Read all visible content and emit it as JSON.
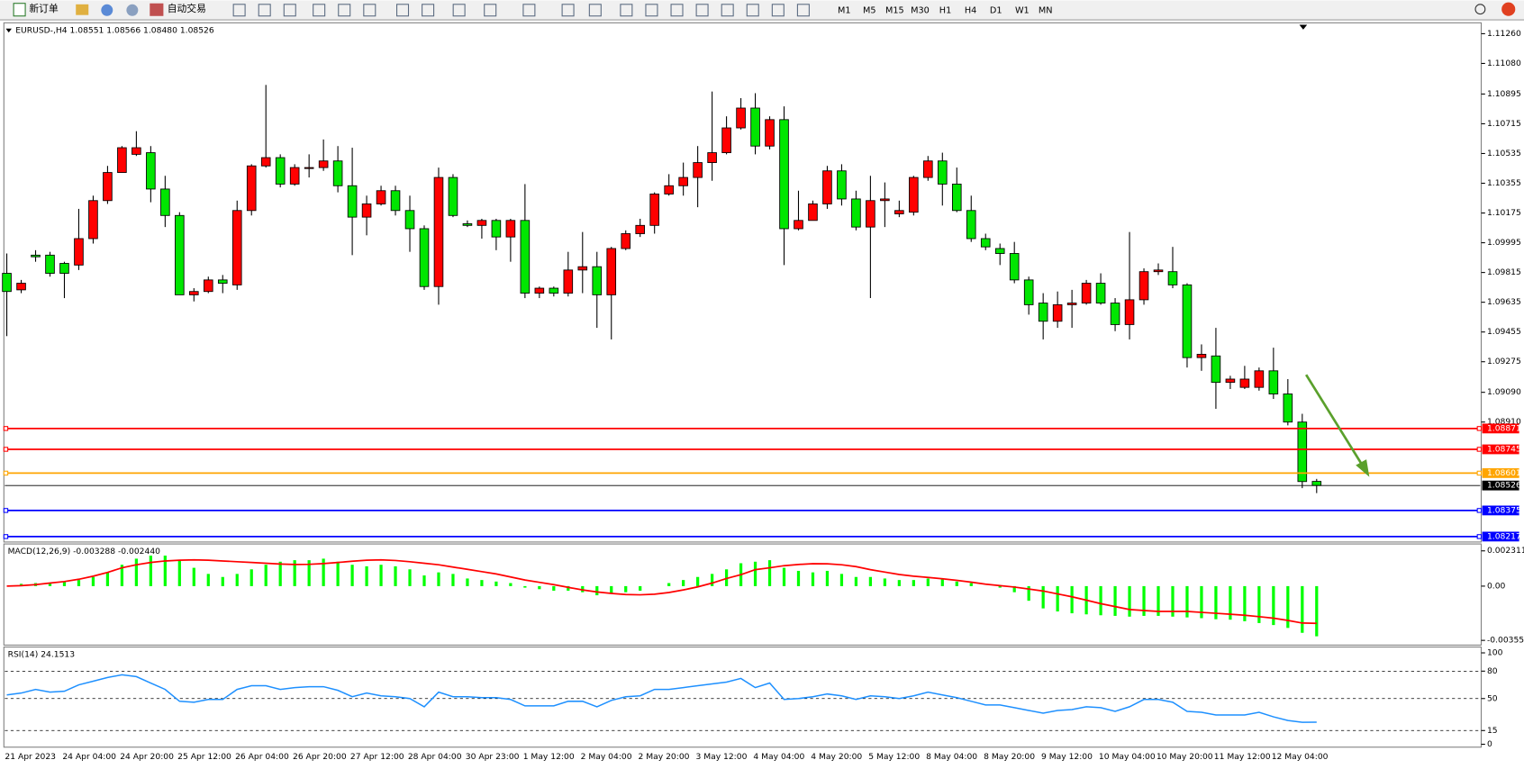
{
  "toolbar": {
    "new_order": "新订单",
    "auto_trading": "自动交易",
    "timeframes": [
      "M1",
      "M5",
      "M15",
      "M30",
      "H1",
      "H4",
      "D1",
      "W1",
      "MN"
    ]
  },
  "chart_data": [
    {
      "type": "candlestick",
      "title": "EURUSD-,H4  1.08551 1.08566 1.08480 1.08526",
      "categories": [
        "21 Apr 2023",
        null,
        null,
        null,
        "24 Apr 04:00",
        null,
        null,
        null,
        "24 Apr 20:00",
        null,
        null,
        null,
        "25 Apr 12:00",
        null,
        null,
        null,
        "26 Apr 04:00",
        null,
        null,
        null,
        "26 Apr 20:00",
        null,
        null,
        null,
        "27 Apr 12:00",
        null,
        null,
        null,
        "28 Apr 04:00",
        null,
        null,
        null,
        "30 Apr 23:00",
        null,
        null,
        null,
        "1 May 12:00",
        null,
        null,
        null,
        "2 May 04:00",
        null,
        null,
        null,
        "2 May 20:00",
        null,
        null,
        null,
        "3 May 12:00",
        null,
        null,
        null,
        "4 May 04:00",
        null,
        null,
        null,
        "4 May 20:00",
        null,
        null,
        null,
        "5 May 12:00",
        null,
        null,
        null,
        "8 May 04:00",
        null,
        null,
        null,
        "8 May 20:00",
        null,
        null,
        null,
        "9 May 12:00",
        null,
        null,
        null,
        "10 May 04:00",
        null,
        null,
        null,
        "10 May 20:00",
        null,
        null,
        null,
        "11 May 12:00",
        null,
        null,
        null,
        "12 May 04:00",
        null,
        null,
        null
      ],
      "open": [
        1.0981,
        1.0971,
        1.0992,
        1.0992,
        1.0987,
        1.0986,
        1.1002,
        1.1025,
        1.1042,
        1.1053,
        1.1054,
        1.1032,
        1.1016,
        1.0968,
        1.097,
        1.0977,
        1.0974,
        1.1019,
        1.1046,
        1.1051,
        1.1035,
        1.1045,
        1.1045,
        1.1049,
        1.1034,
        1.1015,
        1.1023,
        1.1031,
        1.1019,
        1.1008,
        1.0973,
        1.1039,
        1.1011,
        1.101,
        1.1013,
        1.1003,
        1.1013,
        1.0969,
        1.0972,
        1.0969,
        1.0983,
        1.0985,
        1.0968,
        1.0996,
        1.1005,
        1.101,
        1.1029,
        1.1034,
        1.1039,
        1.1048,
        1.1054,
        1.1069,
        1.1081,
        1.1058,
        1.1074,
        1.1008,
        1.1013,
        1.1023,
        1.1043,
        1.1026,
        1.1009,
        1.1025,
        1.1017,
        1.1018,
        1.1039,
        1.1049,
        1.1035,
        1.1019,
        1.1002,
        1.0996,
        1.0993,
        1.0977,
        1.0963,
        1.0952,
        1.0962,
        1.0963,
        1.0975,
        1.0963,
        1.095,
        1.0965,
        1.0982,
        1.0982,
        1.0974,
        1.093,
        1.0931,
        1.0915,
        1.0912,
        1.0912,
        1.0922,
        1.0908,
        1.0891,
        1.08551
      ],
      "high": [
        1.0993,
        1.0977,
        1.0995,
        1.0994,
        1.0988,
        1.102,
        1.1028,
        1.1046,
        1.1058,
        1.1067,
        1.1058,
        1.104,
        1.1018,
        1.0972,
        1.0979,
        1.098,
        1.1025,
        1.1047,
        1.1095,
        1.1053,
        1.1047,
        1.1053,
        1.1062,
        1.1058,
        1.1057,
        1.1028,
        1.1034,
        1.1034,
        1.1028,
        1.101,
        1.1045,
        1.1041,
        1.1013,
        1.1014,
        1.1014,
        1.1014,
        1.1035,
        1.0973,
        1.0973,
        1.0994,
        1.1006,
        1.0994,
        1.0997,
        1.1007,
        1.1014,
        1.103,
        1.1041,
        1.1048,
        1.1058,
        1.1091,
        1.1076,
        1.1087,
        1.109,
        1.1076,
        1.1082,
        1.1031,
        1.1025,
        1.1046,
        1.1047,
        1.1031,
        1.104,
        1.1036,
        1.1025,
        1.104,
        1.1052,
        1.1054,
        1.1045,
        1.1028,
        1.1005,
        1.0999,
        1.1,
        1.0979,
        1.0969,
        1.097,
        1.0971,
        1.0977,
        1.0981,
        1.0966,
        1.1006,
        1.0984,
        1.0987,
        1.0997,
        1.0975,
        1.0938,
        1.0948,
        1.0919,
        1.0925,
        1.0924,
        1.0936,
        1.0917,
        1.0896,
        1.08566
      ],
      "low": [
        1.0943,
        1.0969,
        1.0988,
        1.0979,
        1.0966,
        1.0983,
        1.0999,
        1.1023,
        1.1042,
        1.1052,
        1.1024,
        1.1009,
        1.0968,
        1.0964,
        1.0969,
        1.0969,
        1.0971,
        1.1016,
        1.1045,
        1.1033,
        1.1034,
        1.1039,
        1.1043,
        1.103,
        1.0992,
        1.1004,
        1.1022,
        1.1016,
        1.0994,
        1.0971,
        1.0962,
        1.1015,
        1.1009,
        1.1002,
        1.0995,
        1.0988,
        1.0966,
        1.0966,
        1.0967,
        1.0967,
        1.0969,
        1.0948,
        1.0941,
        1.0995,
        1.1003,
        1.1005,
        1.1028,
        1.1028,
        1.1021,
        1.1037,
        1.1053,
        1.1068,
        1.1053,
        1.1056,
        1.0986,
        1.1007,
        1.1013,
        1.102,
        1.1022,
        1.1007,
        1.0966,
        1.1009,
        1.1015,
        1.1016,
        1.1037,
        1.1022,
        1.1018,
        1.1,
        1.0995,
        1.0986,
        1.0975,
        1.0956,
        1.0941,
        1.0948,
        1.0948,
        1.0962,
        1.0962,
        1.0946,
        1.0941,
        1.0962,
        1.098,
        1.0972,
        1.0924,
        1.0922,
        1.0899,
        1.0911,
        1.0911,
        1.091,
        1.0905,
        1.0889,
        1.0851,
        1.0848
      ],
      "close": [
        1.097,
        1.0975,
        1.0991,
        1.0981,
        1.0981,
        1.1002,
        1.1025,
        1.1042,
        1.1057,
        1.1057,
        1.1032,
        1.1016,
        1.0968,
        1.097,
        1.0977,
        1.0975,
        1.1019,
        1.1046,
        1.1051,
        1.1035,
        1.1045,
        1.1045,
        1.1049,
        1.1034,
        1.1015,
        1.1023,
        1.1031,
        1.1019,
        1.1008,
        1.0973,
        1.1039,
        1.1016,
        1.101,
        1.1013,
        1.1003,
        1.1013,
        1.0969,
        1.0972,
        1.0969,
        1.0983,
        1.0985,
        1.0968,
        1.0996,
        1.1005,
        1.101,
        1.1029,
        1.1034,
        1.1039,
        1.1048,
        1.1054,
        1.1069,
        1.1081,
        1.1058,
        1.1074,
        1.1008,
        1.1013,
        1.1023,
        1.1043,
        1.1026,
        1.1009,
        1.1025,
        1.1026,
        1.1019,
        1.1039,
        1.1049,
        1.1035,
        1.1019,
        1.1002,
        1.0997,
        1.0993,
        1.0977,
        1.0962,
        1.0952,
        1.0962,
        1.0963,
        1.0975,
        1.0963,
        1.095,
        1.0965,
        1.0982,
        1.0983,
        1.0974,
        1.093,
        1.0932,
        1.0915,
        1.0917,
        1.0917,
        1.0922,
        1.0908,
        1.0891,
        1.0855,
        1.08526
      ],
      "up_color": "#ff0000",
      "down_color": "#00e600",
      "ylim": [
        1.0819,
        1.1132
      ],
      "yticks": [
        {
          "value": 1.1126,
          "label": "1.11260"
        },
        {
          "value": 1.1108,
          "label": "1.11080"
        },
        1.10895,
        1.10715,
        1.10535,
        1.10355,
        1.10175,
        1.09995,
        1.09815,
        1.09635,
        1.09455,
        1.09275,
        {
          "value": 1.0909,
          "label": "1.09090"
        },
        {
          "value": 1.0891,
          "label": "1.08910"
        }
      ],
      "hlines": [
        {
          "value": 1.08871,
          "color": "#ff0000"
        },
        {
          "value": 1.08745,
          "color": "#ff0000"
        },
        {
          "value": 1.08601,
          "color": "#ffa500"
        },
        {
          "value": 1.08526,
          "color": "#000000"
        },
        {
          "value": 1.08375,
          "color": "#0000ff"
        },
        {
          "value": 1.08217,
          "color": "#0000ff"
        }
      ]
    },
    {
      "type": "bar",
      "title": "MACD(12,26,9) -0.003288 -0.002440",
      "series": [
        {
          "color": "#00ff00",
          "values": [
            0,
            0.00015,
            0.0002,
            0.0002,
            0.0003,
            0.0004,
            0.0006,
            0.0009,
            0.0014,
            0.0018,
            0.002,
            0.002,
            0.0017,
            0.0012,
            0.0008,
            0.0006,
            0.0008,
            0.0011,
            0.0014,
            0.0016,
            0.0017,
            0.0017,
            0.0018,
            0.0016,
            0.0014,
            0.0013,
            0.0014,
            0.0013,
            0.0011,
            0.0007,
            0.0009,
            0.0008,
            0.0005,
            0.0004,
            0.0003,
            0.0002,
            -0.0001,
            -0.0002,
            -0.0003,
            -0.0003,
            -0.0004,
            -0.0006,
            -0.0005,
            -0.0004,
            -0.0003,
            0,
            0.0002,
            0.0004,
            0.0006,
            0.0008,
            0.0011,
            0.0015,
            0.0016,
            0.0017,
            0.0012,
            0.001,
            0.0009,
            0.001,
            0.0008,
            0.0006,
            0.0006,
            0.0005,
            0.0004,
            0.0004,
            0.0005,
            0.0005,
            0.0003,
            0.0002,
            0,
            -0.0001,
            -0.0004,
            -0.00096,
            -0.00146,
            -0.00166,
            -0.00178,
            -0.00185,
            -0.00191,
            -0.00195,
            -0.002,
            -0.00195,
            -0.00195,
            -0.002,
            -0.00205,
            -0.0021,
            -0.00217,
            -0.0022,
            -0.0023,
            -0.00242,
            -0.00255,
            -0.00274,
            -0.00306,
            -0.003288
          ]
        },
        {
          "type": "line",
          "color": "#ff0000",
          "values": [
            0,
            3e-05,
            0.0001,
            0.0002,
            0.0003,
            0.00045,
            0.00065,
            0.0009,
            0.0012,
            0.0014,
            0.00155,
            0.00165,
            0.0017,
            0.00172,
            0.0017,
            0.00165,
            0.0016,
            0.00155,
            0.0015,
            0.00145,
            0.00142,
            0.00143,
            0.00148,
            0.00155,
            0.00163,
            0.0017,
            0.00172,
            0.00168,
            0.0016,
            0.0015,
            0.0014,
            0.00125,
            0.0011,
            0.00095,
            0.0008,
            0.0006,
            0.0004,
            0.00025,
            0.0001,
            -8e-05,
            -0.00025,
            -0.00038,
            -0.00048,
            -0.00055,
            -0.00057,
            -0.00053,
            -0.00042,
            -0.00025,
            -5e-05,
            0.0002,
            0.0005,
            0.00075,
            0.00108,
            0.0012,
            0.00134,
            0.00142,
            0.00147,
            0.00146,
            0.0014,
            0.00128,
            0.00108,
            0.00092,
            0.00076,
            0.00065,
            0.00057,
            0.00048,
            0.00038,
            0.00026,
            0.00013,
            3e-05,
            -6e-05,
            -0.00019,
            -0.00032,
            -0.00051,
            -0.0007,
            -0.00092,
            -0.00115,
            -0.00134,
            -0.00153,
            -0.0016,
            -0.00166,
            -0.00166,
            -0.00166,
            -0.00172,
            -0.00178,
            -0.00184,
            -0.00191,
            -0.002,
            -0.0021,
            -0.00225,
            -0.00242,
            -0.00244
          ]
        }
      ],
      "ylim": [
        -0.0038,
        0.0027
      ],
      "yticks": [
        0.002311,
        {
          "value": 0,
          "label": "0.00"
        },
        -0.003555
      ]
    },
    {
      "type": "line",
      "title": "RSI(14) 24.1513",
      "color": "#1e90ff",
      "values": [
        54,
        56,
        60,
        57,
        58,
        65,
        69,
        73,
        76,
        74,
        67,
        60,
        47,
        46,
        49,
        49,
        60,
        64,
        64,
        60,
        62,
        63,
        63,
        59,
        52,
        56,
        53,
        52,
        50,
        41,
        57,
        52,
        52,
        51,
        51,
        49,
        42,
        42,
        42,
        47,
        47,
        41,
        48,
        52,
        53,
        60,
        60,
        62,
        64,
        66,
        68,
        72,
        62,
        67,
        49,
        50,
        52,
        55,
        53,
        49,
        53,
        52,
        50,
        53,
        57,
        54,
        51,
        47,
        43,
        43,
        40,
        37,
        34,
        37,
        38,
        41,
        40,
        36,
        41,
        49,
        49,
        46,
        36,
        35,
        32,
        32,
        32,
        35,
        30,
        26,
        24,
        24.1513
      ],
      "ylim": [
        0,
        100
      ],
      "yticks": [
        100,
        80,
        50,
        15,
        0
      ]
    }
  ]
}
